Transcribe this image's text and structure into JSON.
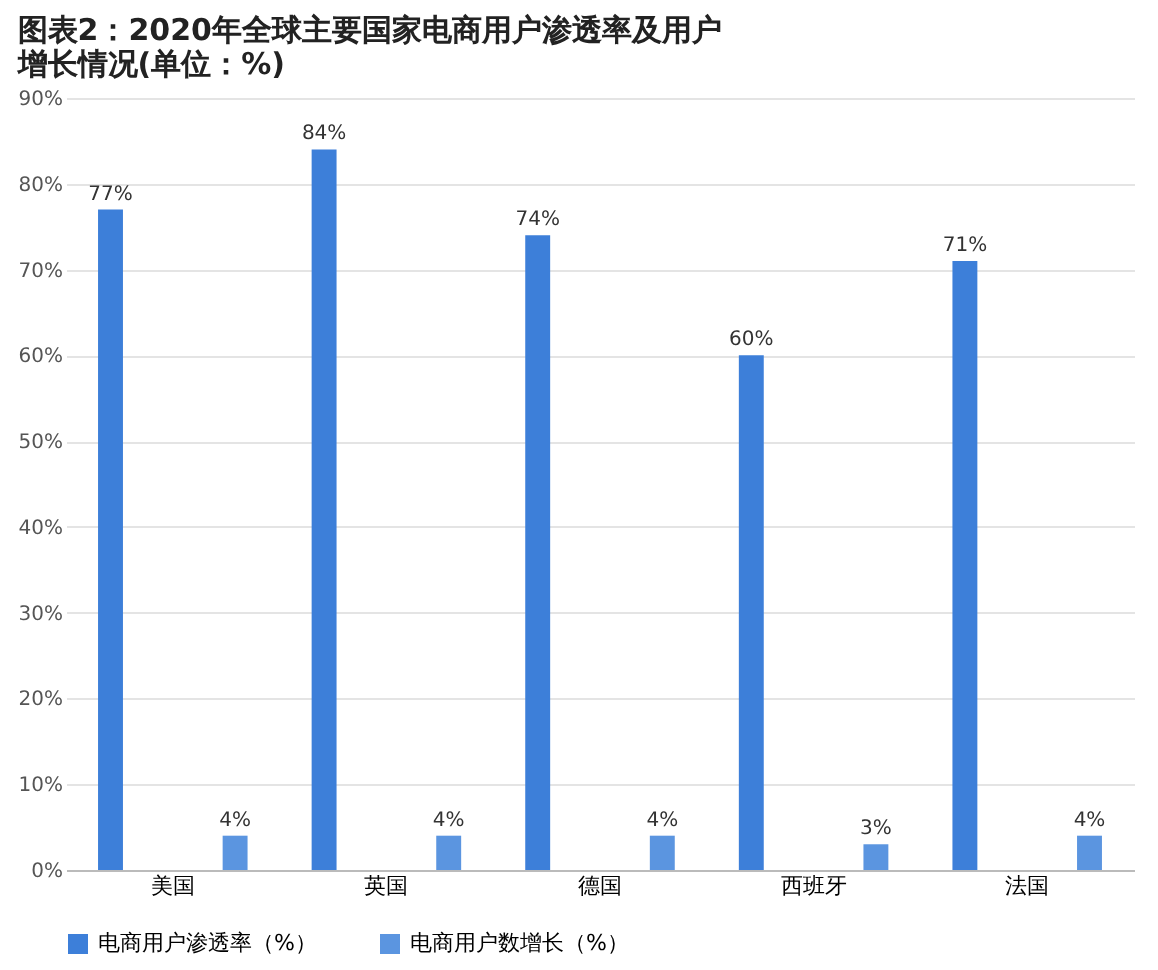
{
  "chart_data": {
    "type": "bar",
    "title": "图表2：2020年全球主要国家电商用户渗透率及用户增长情况(单位：%)",
    "categories": [
      "美国",
      "英国",
      "德国",
      "西班牙",
      "法国"
    ],
    "series": [
      {
        "name": "电商用户渗透率（%）",
        "color": "#3d7fd9",
        "values": [
          77,
          84,
          74,
          60,
          71
        ],
        "value_labels": [
          "77%",
          "84%",
          "74%",
          "60%",
          "71%"
        ]
      },
      {
        "name": "电商用户数增长（%）",
        "color": "#5b95e0",
        "values": [
          4,
          4,
          4,
          3,
          4
        ],
        "value_labels": [
          "4%",
          "4%",
          "4%",
          "3%",
          "4%"
        ]
      }
    ],
    "ylim": [
      0,
      90
    ],
    "yticks": [
      {
        "value": 0,
        "label": "0%"
      },
      {
        "value": 10,
        "label": "10%"
      },
      {
        "value": 20,
        "label": "20%"
      },
      {
        "value": 30,
        "label": "30%"
      },
      {
        "value": 40,
        "label": "40%"
      },
      {
        "value": 50,
        "label": "50%"
      },
      {
        "value": 60,
        "label": "60%"
      },
      {
        "value": 70,
        "label": "70%"
      },
      {
        "value": 80,
        "label": "80%"
      },
      {
        "value": 90,
        "label": "90%"
      }
    ],
    "grid": "y",
    "legend": "bottom"
  }
}
